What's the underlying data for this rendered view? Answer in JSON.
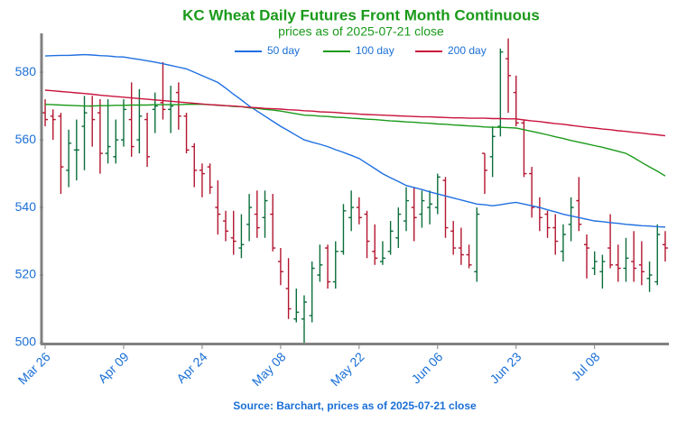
{
  "chart_data": {
    "type": "ohlc",
    "title": "KC Wheat Daily Futures Front Month Continuous",
    "subtitle": "prices as of 2025-07-21 close",
    "source": "Source: Barchart, prices as of 2025-07-21 close",
    "categories": [
      "Mar 26",
      null,
      null,
      null,
      null,
      null,
      null,
      null,
      null,
      null,
      "Apr 09",
      null,
      null,
      null,
      null,
      null,
      null,
      null,
      null,
      null,
      "Apr 24",
      null,
      null,
      null,
      null,
      null,
      null,
      null,
      null,
      null,
      "May 08",
      null,
      null,
      null,
      null,
      null,
      null,
      null,
      null,
      null,
      "May 22",
      null,
      null,
      null,
      null,
      null,
      null,
      null,
      null,
      null,
      "Jun 06",
      null,
      null,
      null,
      null,
      null,
      null,
      null,
      null,
      null,
      "Jun 23",
      null,
      null,
      null,
      null,
      null,
      null,
      null,
      null,
      null,
      "Jul 08",
      null,
      null,
      null,
      null,
      null,
      null,
      null,
      null,
      null
    ],
    "ohlc": {
      "open": [
        568,
        567,
        567,
        551,
        557,
        564,
        570,
        568,
        556,
        555,
        560,
        566,
        560,
        566,
        569,
        571,
        569,
        574,
        567,
        558,
        551,
        552,
        540,
        536,
        531,
        528,
        535,
        538,
        537,
        538,
        524,
        516,
        507,
        507,
        508,
        520,
        528,
        518,
        527,
        537,
        540,
        538,
        527,
        524,
        527,
        531,
        536,
        540,
        538,
        540,
        540,
        548,
        533,
        528,
        526,
        521,
        556,
        555,
        564,
        584,
        574,
        565,
        550,
        540,
        538,
        534,
        527,
        535,
        542,
        529,
        522,
        521,
        528,
        523,
        522,
        524,
        523,
        519,
        518,
        529
      ],
      "high": [
        572,
        569,
        568,
        563,
        566,
        573,
        573,
        572,
        572,
        566,
        572,
        577,
        575,
        568,
        574,
        583,
        576,
        577,
        568,
        559,
        553,
        553,
        548,
        539,
        539,
        538,
        544,
        545,
        545,
        544,
        528,
        525,
        516,
        514,
        524,
        529,
        529,
        530,
        541,
        545,
        543,
        539,
        535,
        530,
        536,
        540,
        546,
        546,
        545,
        545,
        550,
        549,
        536,
        534,
        529,
        540,
        556,
        564,
        587,
        590,
        579,
        566,
        552,
        543,
        539,
        538,
        535,
        543,
        549,
        532,
        527,
        526,
        538,
        529,
        531,
        533,
        530,
        524,
        535,
        533
      ],
      "low": [
        564,
        560,
        544,
        546,
        548,
        551,
        558,
        550,
        553,
        553,
        558,
        555,
        556,
        552,
        562,
        566,
        562,
        563,
        556,
        546,
        543,
        544,
        532,
        530,
        526,
        525,
        530,
        531,
        531,
        527,
        517,
        507,
        506,
        500,
        506,
        518,
        516,
        516,
        526,
        533,
        535,
        525,
        523,
        523,
        526,
        528,
        533,
        530,
        534,
        535,
        538,
        531,
        526,
        523,
        522,
        518,
        544,
        549,
        561,
        568,
        564,
        549,
        537,
        533,
        531,
        526,
        524,
        530,
        533,
        519,
        520,
        516,
        522,
        518,
        518,
        518,
        517,
        515,
        517,
        524
      ],
      "close": [
        566,
        566,
        552,
        559,
        557,
        568,
        566,
        556,
        558,
        560,
        569,
        558,
        567,
        555,
        570,
        569,
        570,
        567,
        557,
        551,
        550,
        546,
        538,
        533,
        530,
        529,
        540,
        534,
        542,
        528,
        521,
        510,
        509,
        512,
        522,
        523,
        518,
        527,
        539,
        540,
        537,
        530,
        525,
        525,
        533,
        538,
        542,
        537,
        542,
        541,
        549,
        534,
        528,
        526,
        523,
        538,
        551,
        561,
        586,
        579,
        565,
        550,
        540,
        537,
        534,
        530,
        532,
        540,
        535,
        528,
        524,
        524,
        523,
        522,
        525,
        522,
        521,
        520,
        532,
        528
      ]
    },
    "up_color": "#0b6e3b",
    "down_color": "#b3152f",
    "series": [
      {
        "name": "50 day",
        "color": "#1f6fe0",
        "values": [
          584.8,
          584.9,
          585.0,
          585.0,
          585.1,
          585.2,
          585.1,
          584.9,
          584.8,
          584.6,
          584.5,
          584.1,
          583.8,
          583.4,
          583.0,
          582.5,
          582.0,
          581.5,
          581.0,
          580.0,
          579.0,
          578.0,
          577.0,
          575.3,
          573.5,
          571.8,
          570.0,
          568.5,
          567.0,
          565.5,
          564.0,
          562.7,
          561.3,
          560.0,
          559.3,
          558.7,
          558.0,
          557.1,
          556.3,
          555.4,
          554.5,
          553.0,
          551.5,
          550.0,
          548.8,
          547.7,
          546.5,
          545.9,
          545.3,
          544.6,
          544.0,
          543.4,
          542.8,
          542.2,
          541.6,
          541.0,
          540.8,
          540.5,
          540.8,
          541.2,
          541.5,
          541.0,
          540.5,
          540.0,
          539.3,
          538.7,
          538.0,
          537.5,
          537.0,
          536.5,
          536.0,
          535.8,
          535.5,
          535.3,
          535.0,
          534.8,
          534.6,
          534.5,
          534.3,
          534.2
        ]
      },
      {
        "name": "100 day",
        "color": "#1a9a1a",
        "values": [
          570.5,
          570.4,
          570.3,
          570.2,
          570.1,
          570.0,
          570.0,
          570.1,
          570.1,
          570.2,
          570.2,
          570.3,
          570.3,
          570.3,
          570.4,
          570.4,
          570.4,
          570.4,
          570.5,
          570.5,
          570.5,
          570.4,
          570.2,
          570.1,
          569.9,
          569.8,
          569.5,
          569.3,
          569.0,
          568.8,
          568.5,
          568.1,
          567.7,
          567.3,
          567.2,
          567.0,
          566.9,
          566.7,
          566.6,
          566.4,
          566.3,
          566.1,
          566.0,
          565.8,
          565.6,
          565.5,
          565.3,
          565.2,
          565.0,
          564.9,
          564.7,
          564.6,
          564.4,
          564.3,
          564.1,
          564.0,
          563.8,
          563.7,
          563.7,
          563.6,
          563.5,
          563.0,
          562.5,
          562.0,
          561.5,
          560.9,
          560.4,
          559.8,
          559.3,
          558.8,
          558.3,
          557.8,
          557.2,
          556.6,
          556.0,
          554.7,
          553.3,
          552.0,
          550.7,
          549.3
        ]
      },
      {
        "name": "200 day",
        "color": "#c8143c",
        "values": [
          574.7,
          574.5,
          574.3,
          574.1,
          573.9,
          573.7,
          573.5,
          573.2,
          573.0,
          572.8,
          572.6,
          572.4,
          572.2,
          572.0,
          571.8,
          571.6,
          571.4,
          571.2,
          571.0,
          570.8,
          570.6,
          570.4,
          570.3,
          570.1,
          570.0,
          569.8,
          569.6,
          569.5,
          569.3,
          569.2,
          569.1,
          568.9,
          568.8,
          568.6,
          568.5,
          568.3,
          568.2,
          568.1,
          567.9,
          567.8,
          567.6,
          567.5,
          567.4,
          567.3,
          567.2,
          567.1,
          567.0,
          566.9,
          566.8,
          566.8,
          566.7,
          566.6,
          566.5,
          566.5,
          566.4,
          566.4,
          566.4,
          566.3,
          566.3,
          566.2,
          566.2,
          565.9,
          565.6,
          565.4,
          565.1,
          564.8,
          564.6,
          564.3,
          564.0,
          563.7,
          563.5,
          563.2,
          563.0,
          562.7,
          562.5,
          562.2,
          562.0,
          561.7,
          561.5,
          561.2
        ]
      }
    ],
    "ylim": [
      500,
      591.5
    ],
    "yticks": [
      500,
      520,
      540,
      560,
      580
    ],
    "xlim": [
      -0.35,
      79.35
    ],
    "grid": false,
    "legend": "top"
  }
}
